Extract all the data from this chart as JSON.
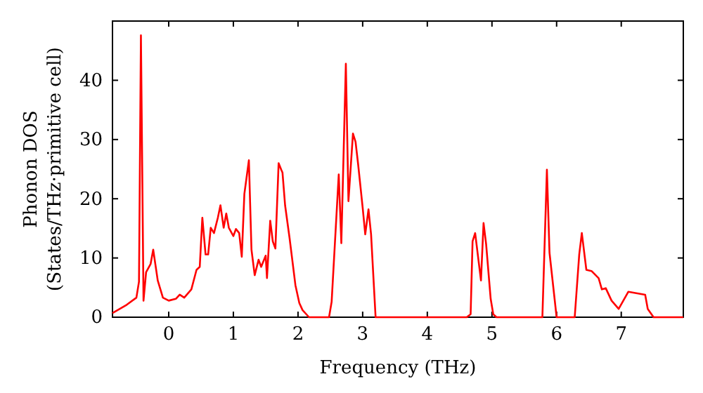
{
  "chart_data": {
    "type": "line",
    "xlabel": "Frequency (THz)",
    "ylabel": "Phonon DOS\n(States/THz·primitive cell)",
    "xlim": [
      -0.87,
      7.96
    ],
    "ylim": [
      0,
      50
    ],
    "xticks": [
      0,
      1,
      2,
      3,
      4,
      5,
      6,
      7
    ],
    "yticks": [
      0,
      10,
      20,
      30,
      40
    ],
    "grid": false,
    "marker": "none",
    "line_style": "solid",
    "series": [
      {
        "color": "#ff0000",
        "x": [
          -0.87,
          -0.65,
          -0.5,
          -0.46,
          -0.43,
          -0.39,
          -0.35,
          -0.28,
          -0.24,
          -0.17,
          -0.09,
          0,
          0.11,
          0.17,
          0.24,
          0.35,
          0.43,
          0.48,
          0.52,
          0.57,
          0.61,
          0.65,
          0.7,
          0.76,
          0.8,
          0.85,
          0.89,
          0.93,
          1.0,
          1.04,
          1.09,
          1.13,
          1.17,
          1.24,
          1.28,
          1.33,
          1.39,
          1.43,
          1.5,
          1.52,
          1.57,
          1.61,
          1.65,
          1.7,
          1.74,
          1.76,
          1.8,
          1.87,
          1.96,
          2.02,
          2.07,
          2.17,
          2.48,
          2.52,
          2.63,
          2.67,
          2.74,
          2.78,
          2.85,
          2.89,
          2.93,
          3.0,
          3.04,
          3.09,
          3.13,
          3.2,
          4.61,
          4.67,
          4.7,
          4.74,
          4.83,
          4.87,
          4.91,
          4.98,
          5.02,
          5.07,
          5.78,
          5.85,
          5.89,
          6.0,
          6.28,
          6.35,
          6.39,
          6.46,
          6.54,
          6.65,
          6.7,
          6.76,
          6.85,
          6.96,
          7.11,
          7.37,
          7.41,
          7.5,
          7.96
        ],
        "values": [
          0.7,
          2.1,
          3.3,
          6,
          47.6,
          2.8,
          7.6,
          9,
          11.4,
          6.2,
          3.3,
          2.8,
          3.1,
          3.8,
          3.3,
          4.7,
          8,
          8.5,
          16.8,
          10.6,
          10.6,
          15.1,
          14.2,
          16.8,
          18.9,
          15.1,
          17.5,
          15.1,
          13.7,
          14.9,
          14.2,
          10.2,
          20.8,
          26.5,
          11.4,
          7.1,
          9.7,
          8.5,
          10.4,
          6.6,
          16.3,
          12.8,
          11.6,
          26,
          24.9,
          24.4,
          18.9,
          13.3,
          5.4,
          2.4,
          1.2,
          0,
          0,
          2.6,
          24.1,
          12.5,
          42.8,
          19.6,
          31,
          29.6,
          25.8,
          18.5,
          14,
          18.2,
          14,
          0,
          0,
          0.5,
          12.8,
          14.2,
          6.2,
          15.9,
          12.3,
          3.1,
          0.5,
          0,
          0,
          24.9,
          10.9,
          0,
          0,
          10.6,
          14.2,
          8,
          7.8,
          6.6,
          4.7,
          4.9,
          2.8,
          1.4,
          4.3,
          3.8,
          1.4,
          0,
          0
        ]
      }
    ]
  }
}
